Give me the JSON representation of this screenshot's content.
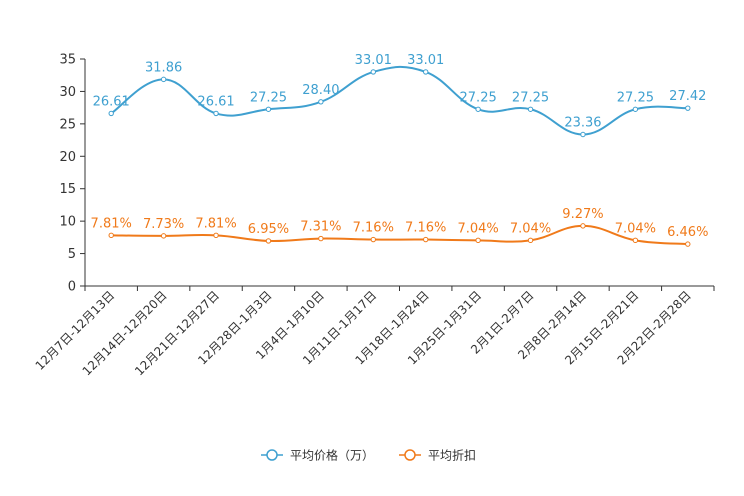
{
  "chart_data": {
    "type": "line",
    "title": "",
    "xlabel": "",
    "ylabel": "",
    "ylim": [
      0,
      35
    ],
    "yticks": [
      "0",
      "5",
      "10",
      "15",
      "20",
      "25",
      "30",
      "35"
    ],
    "grid": false,
    "legend_position": "bottom-center",
    "categories": [
      "12月7日-12月13日",
      "12月14日-12月20日",
      "12月21日-12月27日",
      "12月28日-1月3日",
      "1月4日-1月10日",
      "1月11日-1月17日",
      "1月18日-1月24日",
      "1月25日-1月31日",
      "2月1日-2月7日",
      "2月8日-2月14日",
      "2月15日-2月21日",
      "2月22日-2月28日"
    ],
    "series": [
      {
        "name": "平均价格（万）",
        "color": "#3fa0d0",
        "values": [
          26.61,
          31.86,
          26.61,
          27.25,
          28.4,
          33.01,
          33.01,
          27.25,
          27.25,
          23.36,
          27.25,
          27.42
        ],
        "labels": [
          "26.61",
          "31.86",
          "26.61",
          "27.25",
          "28.40",
          "33.01",
          "33.01",
          "27.25",
          "27.25",
          "23.36",
          "27.25",
          "27.42"
        ]
      },
      {
        "name": "平均折扣",
        "color": "#f07a1a",
        "values": [
          7.81,
          7.73,
          7.81,
          6.95,
          7.31,
          7.16,
          7.16,
          7.04,
          7.04,
          9.27,
          7.04,
          6.46
        ],
        "labels": [
          "7.81%",
          "7.73%",
          "7.81%",
          "6.95%",
          "7.31%",
          "7.16%",
          "7.16%",
          "7.04%",
          "7.04%",
          "9.27%",
          "7.04%",
          "6.46%"
        ]
      }
    ]
  }
}
